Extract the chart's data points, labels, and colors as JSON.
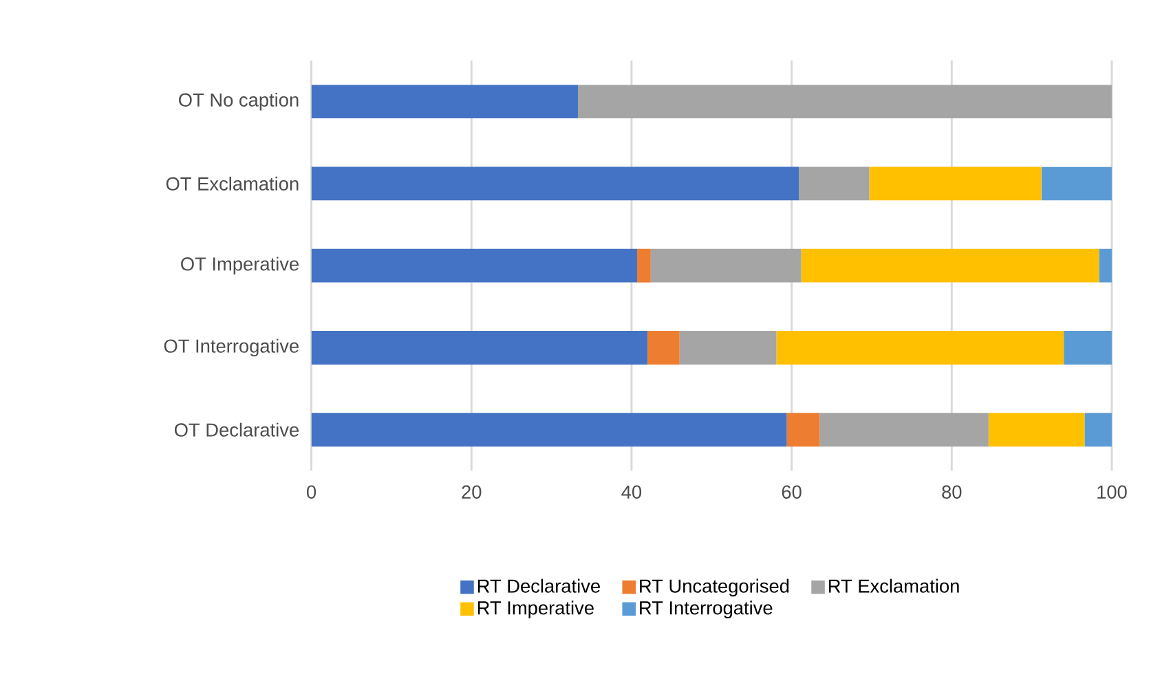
{
  "chart_data": {
    "type": "bar",
    "orientation": "horizontal",
    "stacked": true,
    "categories": [
      "OT No caption",
      "OT Exclamation",
      "OT Imperative",
      "OT Interrogative",
      "OT Declarative"
    ],
    "series": [
      {
        "name": "RT Declarative",
        "color": "#4472c4",
        "values": [
          33.3,
          60.9,
          40.7,
          42.0,
          59.4
        ]
      },
      {
        "name": "RT Uncategorised",
        "color": "#ed7d31",
        "values": [
          0,
          0,
          1.7,
          4.0,
          4.1
        ]
      },
      {
        "name": "RT Exclamation",
        "color": "#a5a5a5",
        "values": [
          66.7,
          8.8,
          18.8,
          12.1,
          21.1
        ]
      },
      {
        "name": "RT Imperative",
        "color": "#ffc000",
        "values": [
          0,
          21.5,
          37.2,
          35.9,
          12.0
        ]
      },
      {
        "name": "RT Interrogative",
        "color": "#5b9bd5",
        "values": [
          0,
          8.8,
          1.6,
          6.0,
          3.4
        ]
      }
    ],
    "xlim": [
      0,
      100
    ],
    "xticks": [
      0,
      20,
      40,
      60,
      80,
      100
    ],
    "grid": "x",
    "legend": "bottom"
  }
}
